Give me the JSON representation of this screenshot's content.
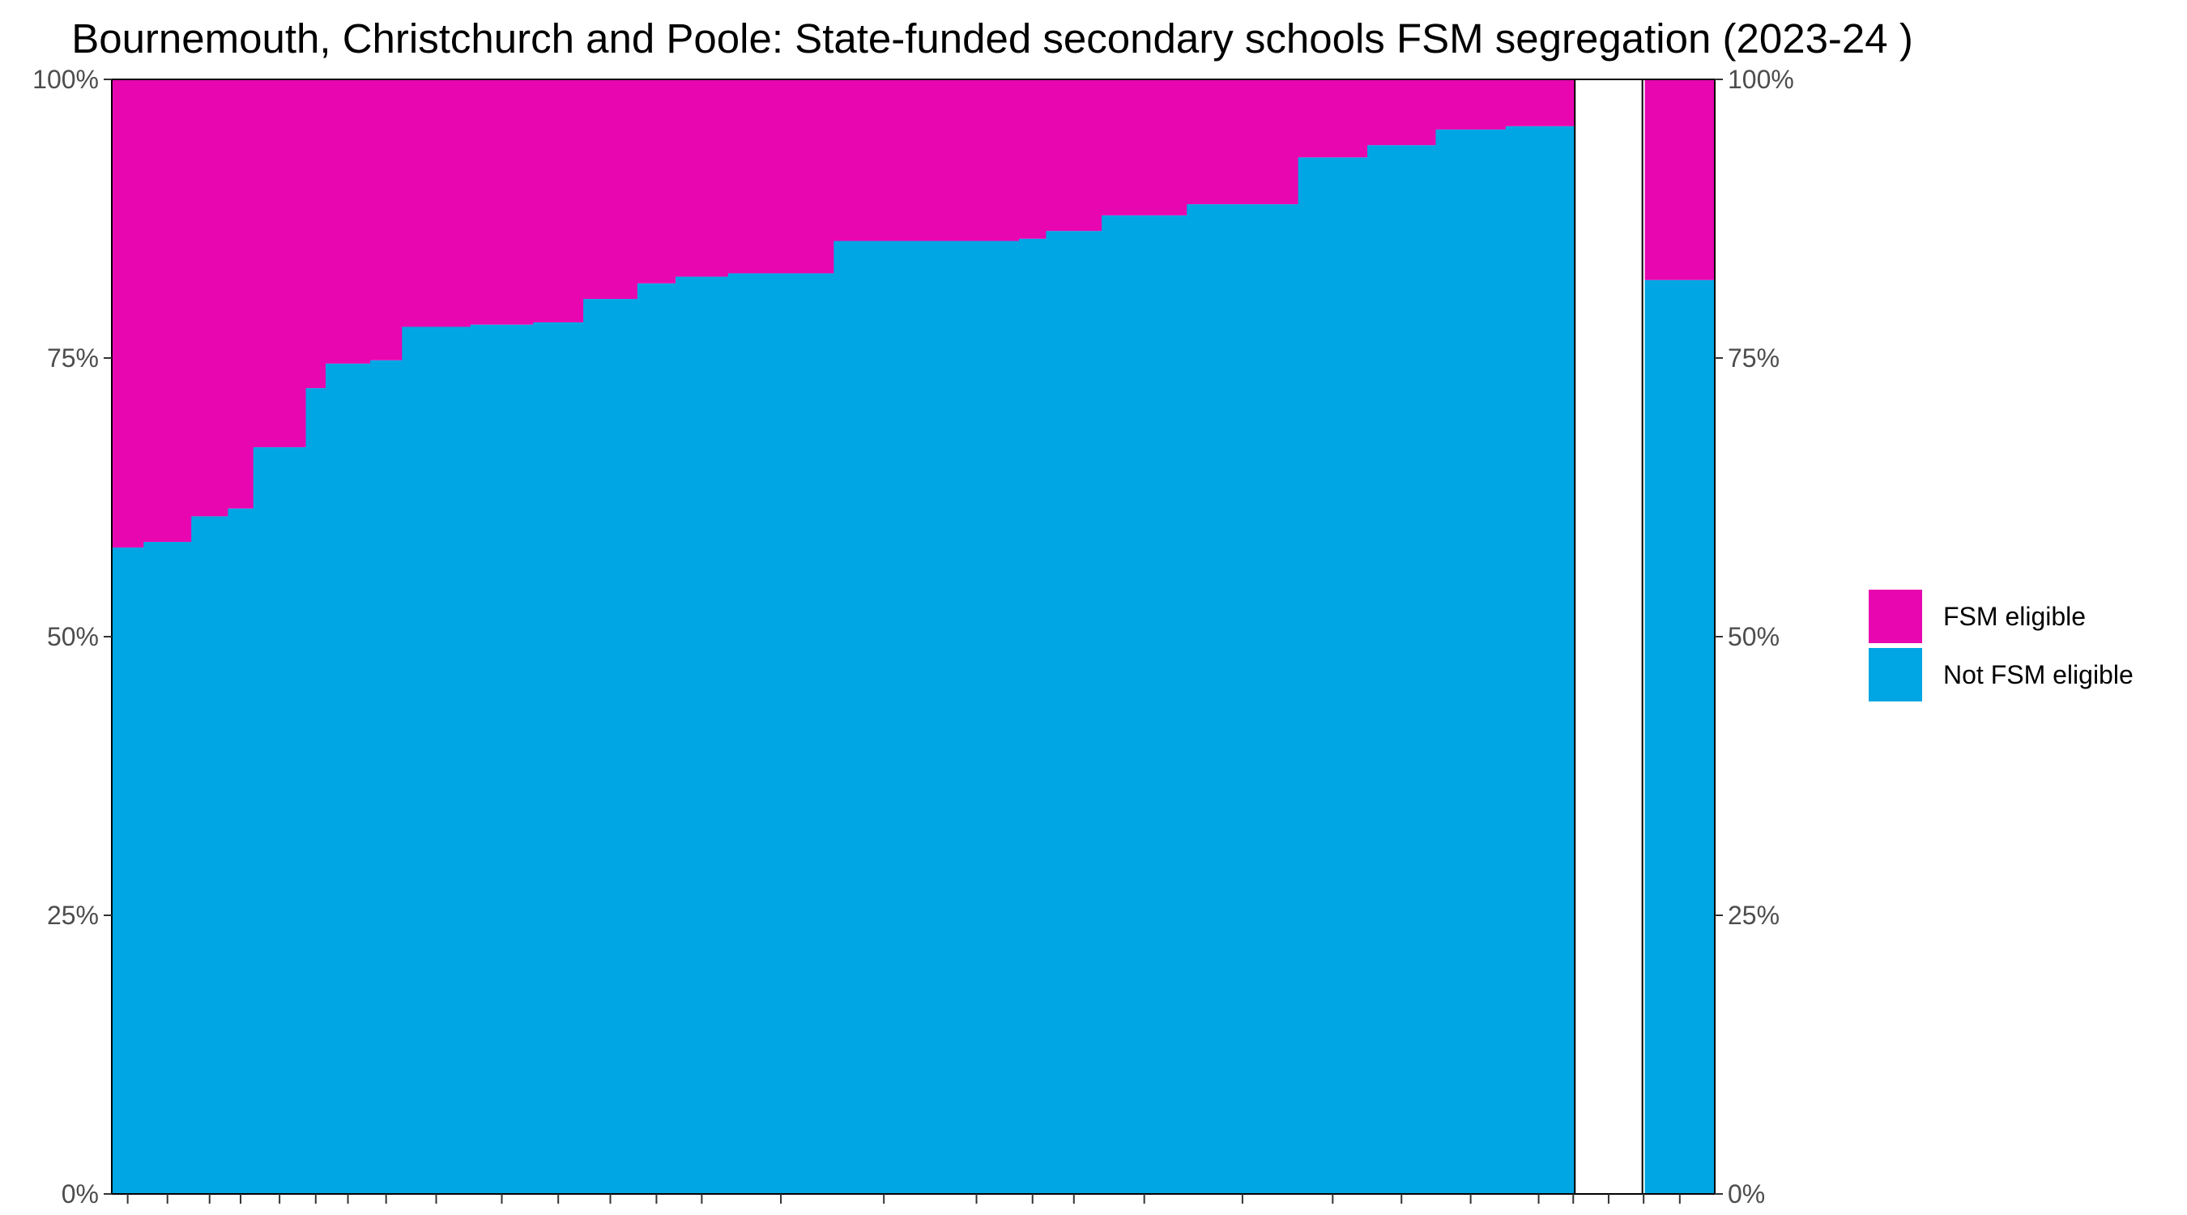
{
  "chart_data": {
    "type": "bar",
    "title": "Bournemouth, Christchurch and Poole: State-funded secondary schools FSM segregation (2023-24 )",
    "xlabel": "",
    "ylabel": "",
    "ylim": [
      0,
      100
    ],
    "y_ticks": [
      "0%",
      "25%",
      "50%",
      "75%",
      "100%"
    ],
    "stacking": "percent",
    "bar_widths_relative": [
      40,
      60,
      46,
      32,
      66,
      25,
      56,
      40,
      86,
      79,
      63,
      68,
      48,
      66,
      133,
      126,
      107,
      34,
      70,
      107,
      140,
      87,
      86,
      88,
      83,
      4,
      85,
      3,
      88
    ],
    "series": [
      {
        "name": "Not FSM eligible",
        "color": "#00a6e4",
        "values": [
          58,
          58.5,
          60.8,
          61.5,
          67,
          72.3,
          74.5,
          74.8,
          77.8,
          78,
          78.2,
          80.3,
          81.7,
          82.3,
          82.6,
          85.5,
          85.5,
          85.7,
          86.4,
          87.8,
          88.8,
          93,
          94.1,
          95.5,
          95.8,
          95.8,
          0,
          0,
          82
        ]
      },
      {
        "name": "FSM eligible",
        "color": "#e806b0",
        "values": [
          42,
          41.5,
          39.2,
          38.5,
          33,
          27.7,
          25.5,
          25.2,
          22.2,
          22,
          21.8,
          19.7,
          18.3,
          17.7,
          17.4,
          14.5,
          14.5,
          14.3,
          13.6,
          12.2,
          11.2,
          7,
          5.9,
          4.5,
          4.2,
          4.2,
          0,
          0,
          18
        ]
      }
    ],
    "legend": {
      "placement": "right",
      "entries": [
        {
          "label": "FSM eligible",
          "color": "#e806b0"
        },
        {
          "label": "Not FSM eligible",
          "color": "#00a6e4"
        }
      ]
    },
    "grid": false,
    "secondary_y_axis": true
  }
}
